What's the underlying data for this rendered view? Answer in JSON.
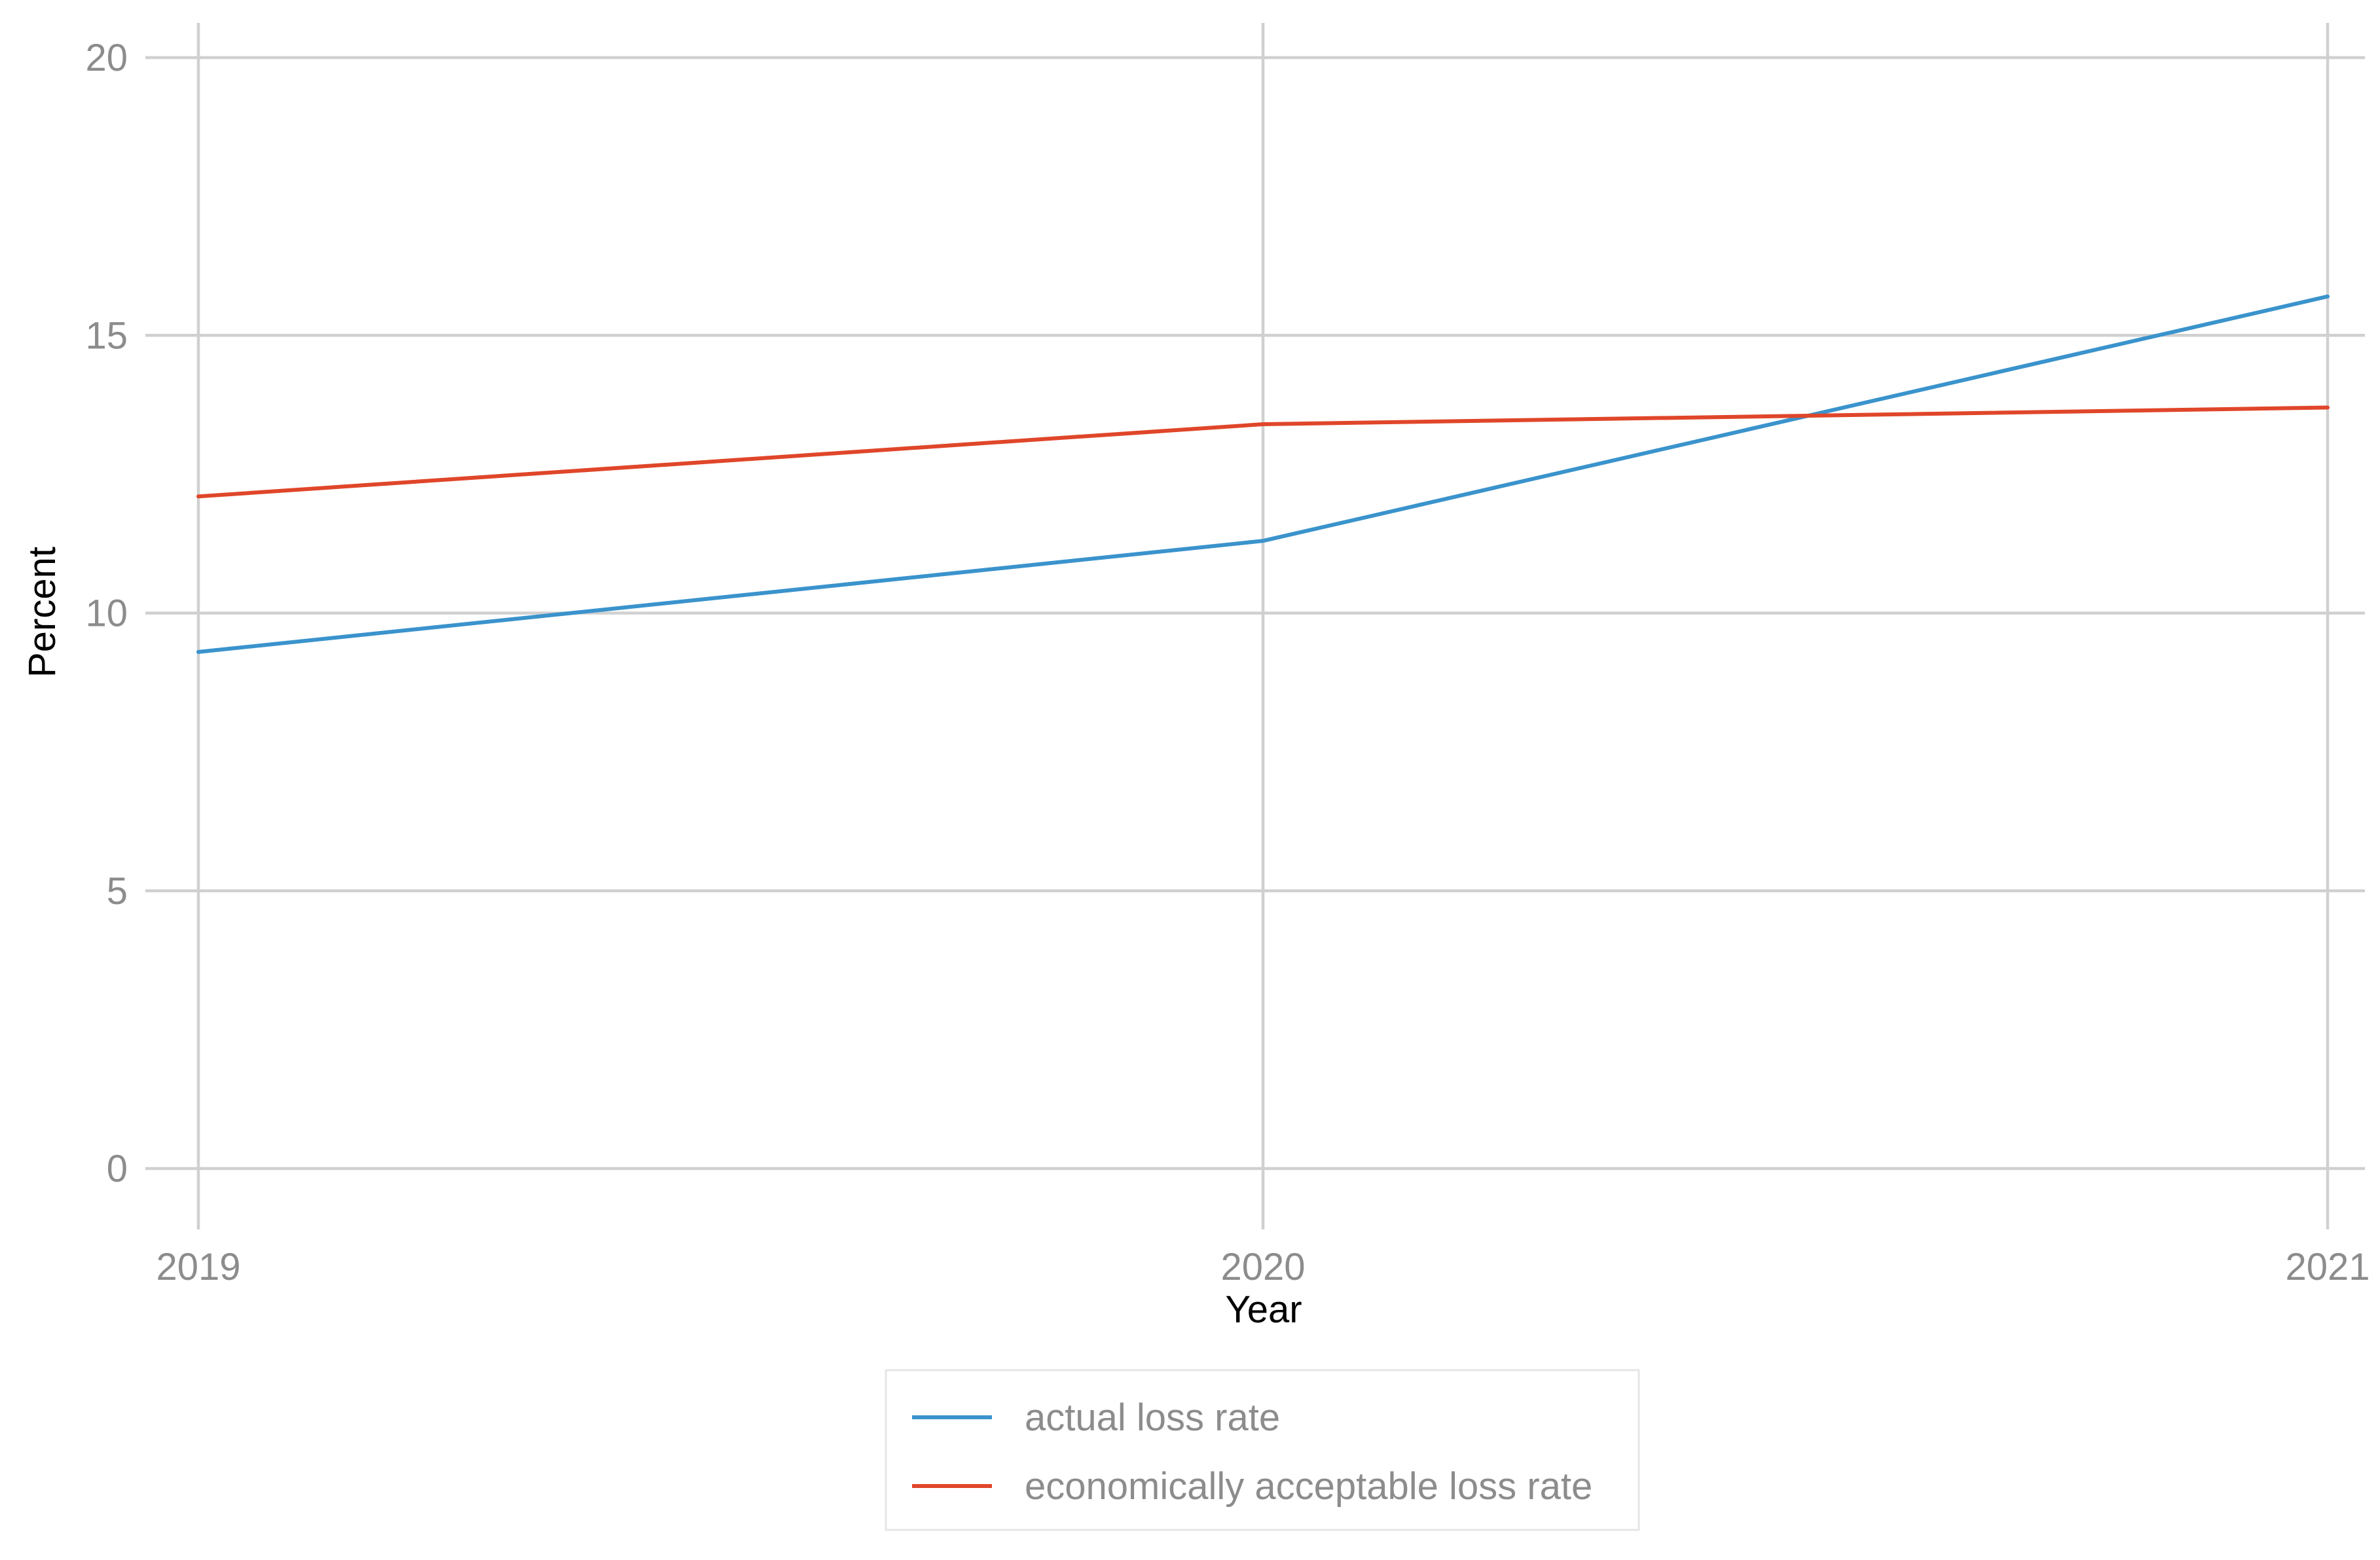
{
  "chart_data": {
    "type": "line",
    "title": "",
    "xlabel": "Year",
    "ylabel": "Percent",
    "x": [
      "2019",
      "2020",
      "2021"
    ],
    "ylim": [
      0,
      20
    ],
    "yticks": [
      0,
      5,
      10,
      15,
      20
    ],
    "grid": true,
    "legend_position": "bottom",
    "series": [
      {
        "name": "actual loss rate",
        "color": "#3a93cc",
        "values": [
          9.3,
          11.3,
          15.7
        ]
      },
      {
        "name": "economically acceptable loss rate",
        "color": "#e0462a",
        "values": [
          12.1,
          13.4,
          13.7
        ]
      }
    ]
  }
}
